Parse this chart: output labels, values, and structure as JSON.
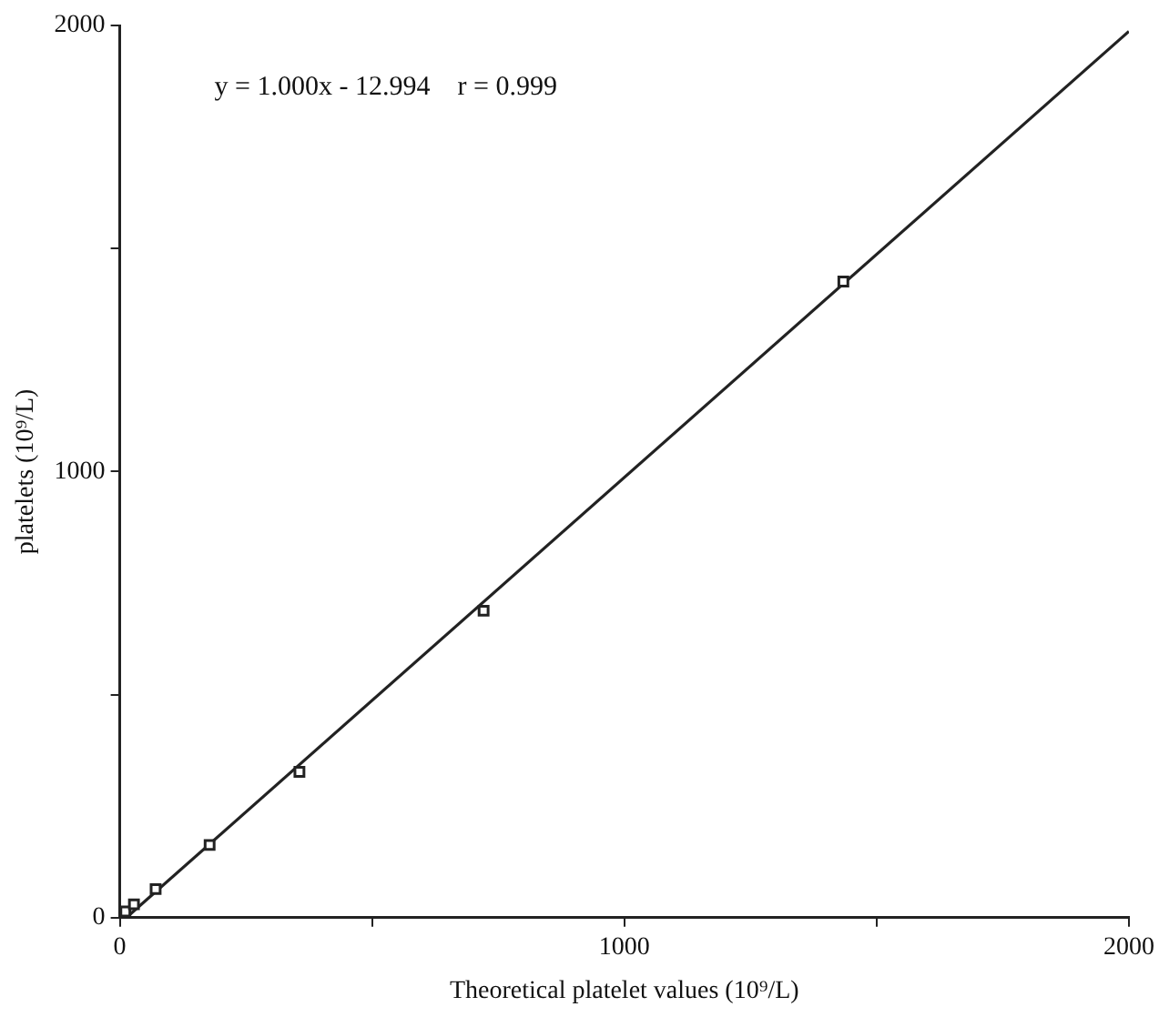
{
  "chart_data": {
    "type": "scatter",
    "xlabel": "Theoretical platelet values (10⁹/L)",
    "ylabel": "platelets (10⁹/L)",
    "annotations": [
      "y = 1.000x - 12.994    r = 0.999"
    ],
    "xlim": [
      0,
      2000
    ],
    "ylim": [
      0,
      2000
    ],
    "xticks": [
      0,
      {
        "value": 500,
        "label": null
      },
      1000,
      {
        "value": 1500,
        "label": null
      },
      2000
    ],
    "yticks": [
      0,
      {
        "value": 500,
        "label": null
      },
      1000,
      {
        "value": 1500,
        "label": null
      },
      2000
    ],
    "grid": false,
    "legend": false,
    "marker": "square",
    "series": [
      {
        "color": "#222222",
        "x": [
          11,
          28,
          71,
          178,
          356,
          721,
          1434
        ],
        "values": [
          14,
          30,
          64,
          163,
          327,
          688,
          1426
        ]
      },
      {
        "type": "line",
        "color": "#222222",
        "x": [
          13,
          2000
        ],
        "values": [
          0,
          1987
        ],
        "marker": "none",
        "line_style": "solid"
      }
    ]
  }
}
